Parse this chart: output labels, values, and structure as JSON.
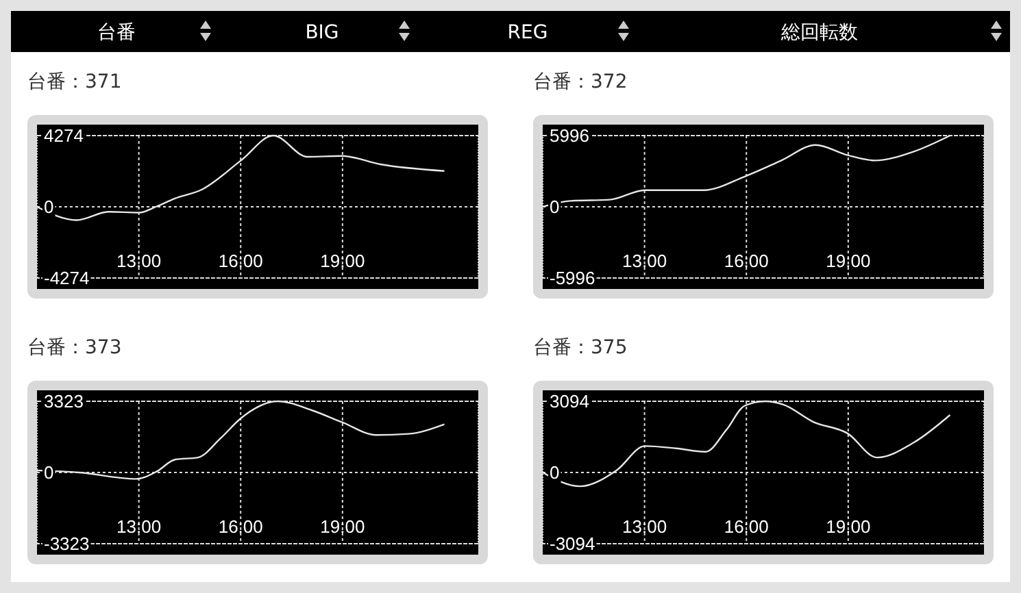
{
  "chart_data": [
    {
      "type": "other",
      "categories": [
        "台番",
        "BIG",
        "REG",
        "総回転数"
      ]
    },
    {
      "type": "line",
      "title": "台番：371",
      "x": [
        10,
        11.17,
        12.11,
        13.01,
        13.5,
        14.06,
        14.87,
        16.02,
        16.96,
        17.97,
        18.98,
        20.12,
        22
      ],
      "values": [
        0,
        -800,
        -300,
        -350,
        0,
        500,
        1050,
        2800,
        4274,
        3000,
        3050,
        2550,
        2150
      ],
      "color": "#e6e6e6",
      "xlim": [
        10,
        23
      ],
      "xticks": [
        {
          "value": 13,
          "label": "13:00"
        },
        {
          "value": 16,
          "label": "16:00"
        },
        {
          "value": 19,
          "label": "19:00"
        }
      ],
      "ylim": [
        -4274,
        4274
      ],
      "yticks": [
        -4274,
        0,
        4274
      ],
      "grid": true
    },
    {
      "type": "line",
      "title": "台番：372",
      "x": [
        10,
        10.83,
        11.98,
        13.01,
        14.74,
        15.95,
        17.03,
        18.04,
        18.98,
        19.78,
        20.93,
        22
      ],
      "values": [
        0,
        500,
        600,
        1400,
        1400,
        2550,
        3900,
        5200,
        4350,
        3900,
        4650,
        5996
      ],
      "color": "#e6e6e6",
      "xlim": [
        10,
        23
      ],
      "xticks": [
        {
          "value": 13,
          "label": "13:00"
        },
        {
          "value": 16,
          "label": "16:00"
        },
        {
          "value": 19,
          "label": "19:00"
        }
      ],
      "ylim": [
        -5996,
        5996
      ],
      "yticks": [
        -5996,
        0,
        5996
      ],
      "grid": true
    },
    {
      "type": "line",
      "title": "台番：373",
      "x": [
        10,
        11.24,
        12.92,
        13.53,
        14.06,
        14.74,
        15.41,
        16.02,
        17.09,
        18.1,
        18.98,
        19.99,
        20.93,
        22
      ],
      "values": [
        100,
        0,
        -300,
        50,
        600,
        700,
        1600,
        2550,
        3323,
        2900,
        2350,
        1750,
        1800,
        2250
      ],
      "color": "#e6e6e6",
      "xlim": [
        10,
        23
      ],
      "xticks": [
        {
          "value": 13,
          "label": "13:00"
        },
        {
          "value": 16,
          "label": "16:00"
        },
        {
          "value": 19,
          "label": "19:00"
        }
      ],
      "ylim": [
        -3323,
        3323
      ],
      "yticks": [
        -3323,
        0,
        3323
      ],
      "grid": true
    },
    {
      "type": "line",
      "title": "台番：375",
      "x": [
        10,
        11.1,
        12.18,
        13.01,
        13.93,
        14.8,
        15.41,
        15.95,
        16.55,
        17.09,
        17.97,
        18.98,
        19.85,
        20.93,
        22
      ],
      "values": [
        0,
        -600,
        100,
        1150,
        1050,
        900,
        1850,
        2900,
        3094,
        2950,
        2200,
        1700,
        650,
        1300,
        2500
      ],
      "color": "#e6e6e6",
      "xlim": [
        10,
        23
      ],
      "xticks": [
        {
          "value": 13,
          "label": "13:00"
        },
        {
          "value": 16,
          "label": "16:00"
        },
        {
          "value": 19,
          "label": "19:00"
        }
      ],
      "ylim": [
        -3094,
        3094
      ],
      "yticks": [
        -3094,
        0,
        3094
      ],
      "grid": true
    }
  ]
}
